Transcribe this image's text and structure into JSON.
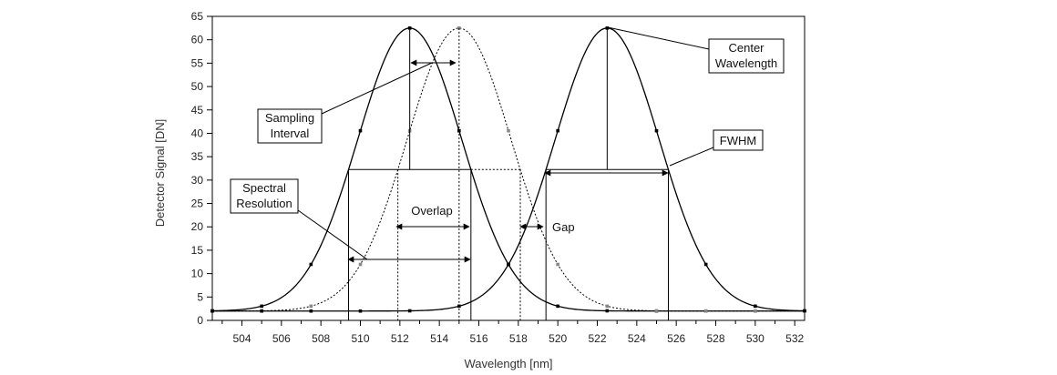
{
  "chart_data": {
    "type": "line",
    "xlabel": "Wavelength [nm]",
    "ylabel": "Detector Signal [DN]",
    "xlim": [
      502.5,
      532.5
    ],
    "ylim": [
      0,
      65
    ],
    "x_ticks": [
      504,
      506,
      508,
      510,
      512,
      514,
      516,
      518,
      520,
      522,
      524,
      526,
      528,
      530,
      532
    ],
    "y_ticks": [
      0,
      5,
      10,
      15,
      20,
      25,
      30,
      35,
      40,
      45,
      50,
      55,
      60,
      65
    ],
    "series": [
      {
        "style": "solid",
        "center": 512.5,
        "fwhm": 6.2,
        "peak": 62.5,
        "baseline": 2
      },
      {
        "style": "dotted",
        "center": 515.0,
        "fwhm": 6.2,
        "peak": 62.5,
        "baseline": 2
      },
      {
        "style": "solid",
        "center": 522.5,
        "fwhm": 6.2,
        "peak": 62.5,
        "baseline": 2
      }
    ],
    "sample_x": [
      502.5,
      505,
      507.5,
      510,
      512.5,
      515,
      517.5,
      520,
      522.5,
      525,
      527.5,
      530,
      532.5
    ]
  },
  "annotations": {
    "sampling_interval": [
      "Sampling",
      "Interval"
    ],
    "center_wavelength": [
      "Center",
      "Wavelength"
    ],
    "fwhm": "FWHM",
    "spectral_resolution": [
      "Spectral",
      "Resolution"
    ],
    "overlap": "Overlap",
    "gap": "Gap"
  }
}
